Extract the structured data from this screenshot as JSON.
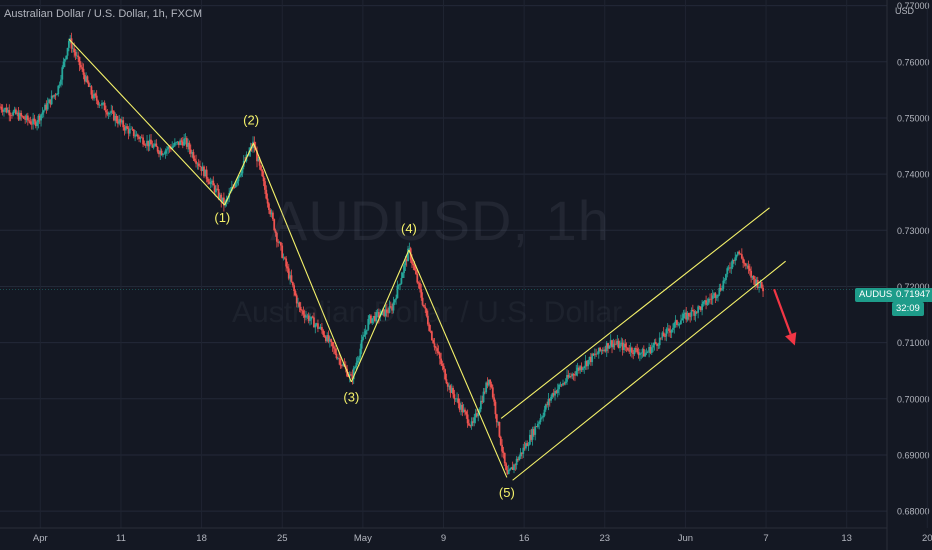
{
  "header": {
    "title": "Australian Dollar / U.S. Dollar, 1h, FXCM"
  },
  "watermark": {
    "main": "AUDUSD, 1h",
    "sub": "Australian Dollar / U.S. Dollar"
  },
  "price_axis": {
    "currency": "USD"
  },
  "current_price": {
    "symbol": "AUDUSD",
    "value": "0.71947",
    "countdown": "32:09"
  },
  "colors": {
    "background": "#141823",
    "candle_up": "#26a69a",
    "candle_down": "#ef5350",
    "annotation": "#f5f26a",
    "arrow": "#f23645",
    "price_tag": "#1e9c8a"
  },
  "chart_data": {
    "type": "candlestick",
    "symbol": "AUDUSD",
    "timeframe": "1h",
    "title": "Australian Dollar / U.S. Dollar, 1h, FXCM",
    "ylabel": "USD",
    "ylim": [
      0.677,
      0.771
    ],
    "yticks": [
      0.77,
      0.76,
      0.75,
      0.74,
      0.73,
      0.72,
      0.71,
      0.7,
      0.69,
      0.68
    ],
    "ytick_labels": [
      "0.77000",
      "0.76000",
      "0.75000",
      "0.74000",
      "0.73000",
      "0.72000",
      "0.71000",
      "0.70000",
      "0.69000",
      "0.68000"
    ],
    "xticks": [
      "Apr",
      "11",
      "18",
      "25",
      "May",
      "9",
      "16",
      "23",
      "Jun",
      "7",
      "13",
      "20"
    ],
    "grid": true,
    "price_path": [
      {
        "x": 0.0,
        "y": 0.752
      },
      {
        "x": 3.0,
        "y": 0.749
      },
      {
        "x": 5.0,
        "y": 0.755
      },
      {
        "x": 6.0,
        "y": 0.764
      },
      {
        "x": 8.0,
        "y": 0.754
      },
      {
        "x": 11.0,
        "y": 0.748
      },
      {
        "x": 14.0,
        "y": 0.744
      },
      {
        "x": 16.0,
        "y": 0.746
      },
      {
        "x": 19.5,
        "y": 0.7345
      },
      {
        "x": 22.0,
        "y": 0.7455
      },
      {
        "x": 24.0,
        "y": 0.729
      },
      {
        "x": 26.0,
        "y": 0.716
      },
      {
        "x": 28.0,
        "y": 0.712
      },
      {
        "x": 30.5,
        "y": 0.7035
      },
      {
        "x": 32.0,
        "y": 0.714
      },
      {
        "x": 34.0,
        "y": 0.716
      },
      {
        "x": 35.5,
        "y": 0.7265
      },
      {
        "x": 37.5,
        "y": 0.711
      },
      {
        "x": 39.0,
        "y": 0.702
      },
      {
        "x": 41.0,
        "y": 0.695
      },
      {
        "x": 42.5,
        "y": 0.704
      },
      {
        "x": 44.0,
        "y": 0.686
      },
      {
        "x": 46.0,
        "y": 0.693
      },
      {
        "x": 48.0,
        "y": 0.701
      },
      {
        "x": 50.0,
        "y": 0.705
      },
      {
        "x": 53.0,
        "y": 0.71
      },
      {
        "x": 56.0,
        "y": 0.708
      },
      {
        "x": 59.0,
        "y": 0.714
      },
      {
        "x": 61.0,
        "y": 0.7165
      },
      {
        "x": 62.5,
        "y": 0.7195
      },
      {
        "x": 64.0,
        "y": 0.7265
      },
      {
        "x": 65.3,
        "y": 0.7215
      },
      {
        "x": 66.3,
        "y": 0.7195
      }
    ],
    "annotations": {
      "wave_lines": [
        {
          "from": {
            "x": 6.0,
            "y": 0.764
          },
          "to": {
            "x": 19.5,
            "y": 0.7345
          }
        },
        {
          "from": {
            "x": 19.5,
            "y": 0.7345
          },
          "to": {
            "x": 22.0,
            "y": 0.7455
          }
        },
        {
          "from": {
            "x": 22.0,
            "y": 0.7455
          },
          "to": {
            "x": 30.5,
            "y": 0.703
          }
        },
        {
          "from": {
            "x": 30.5,
            "y": 0.703
          },
          "to": {
            "x": 35.5,
            "y": 0.7265
          }
        },
        {
          "from": {
            "x": 35.5,
            "y": 0.7265
          },
          "to": {
            "x": 44.0,
            "y": 0.686
          }
        }
      ],
      "wave_labels": [
        {
          "text": "(1)",
          "x": 19.3,
          "y": 0.7315
        },
        {
          "text": "(2)",
          "x": 21.8,
          "y": 0.7488
        },
        {
          "text": "(3)",
          "x": 30.5,
          "y": 0.6995
        },
        {
          "text": "(4)",
          "x": 35.5,
          "y": 0.7295
        },
        {
          "text": "(5)",
          "x": 44.0,
          "y": 0.6825
        }
      ],
      "channel": [
        {
          "from": {
            "x": 43.5,
            "y": 0.6965
          },
          "to": {
            "x": 66.8,
            "y": 0.734
          }
        },
        {
          "from": {
            "x": 44.5,
            "y": 0.6855
          },
          "to": {
            "x": 68.2,
            "y": 0.7245
          }
        }
      ],
      "arrow": {
        "from": {
          "x": 67.2,
          "y": 0.7195
        },
        "to": {
          "x": 69.0,
          "y": 0.7095
        }
      }
    }
  }
}
